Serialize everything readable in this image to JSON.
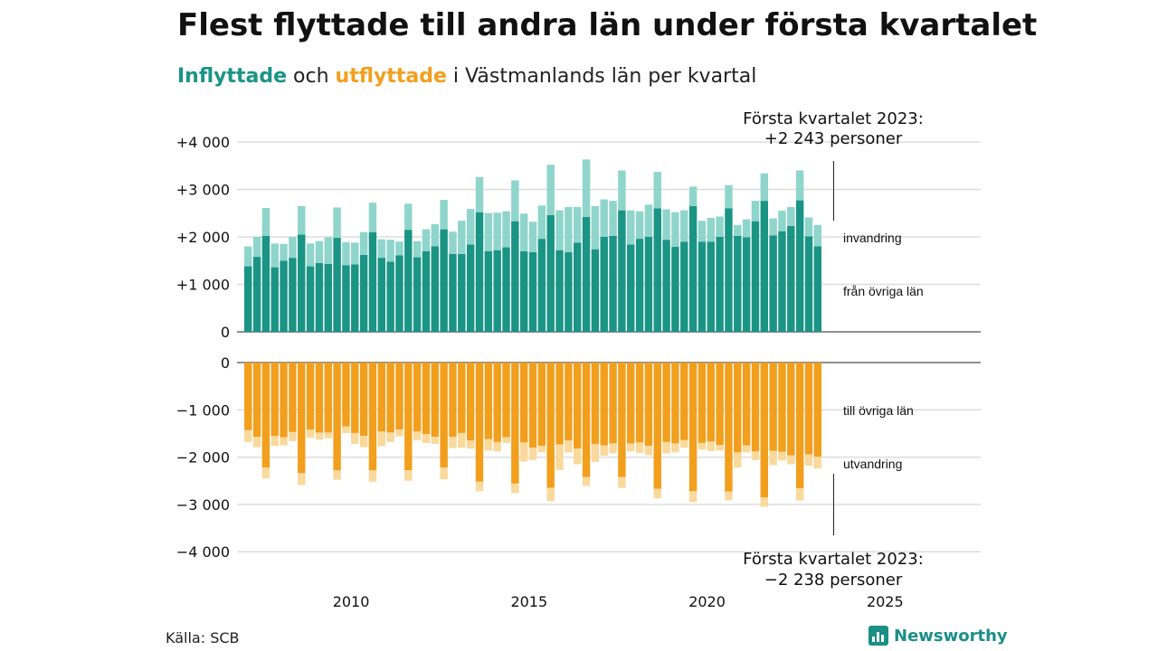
{
  "title": "Flest flyttade till andra län under första kvartalet",
  "subtitle": {
    "inflyttade": "Inflyttade",
    "och": "och",
    "utflyttade": "utflyttade",
    "rest": "i Västmanlands län per kvartal"
  },
  "source": "Källa: SCB",
  "brand": "Newsworthy",
  "colors": {
    "in_dark": "#1a9485",
    "in_light": "#8fd5cb",
    "out_dark": "#f29f1d",
    "out_light": "#f9d99c",
    "grid": "#dddddd"
  },
  "chart_data": {
    "type": "bar",
    "quarters": [
      "2007Q1",
      "2007Q2",
      "2007Q3",
      "2007Q4",
      "2008Q1",
      "2008Q2",
      "2008Q3",
      "2008Q4",
      "2009Q1",
      "2009Q2",
      "2009Q3",
      "2009Q4",
      "2010Q1",
      "2010Q2",
      "2010Q3",
      "2010Q4",
      "2011Q1",
      "2011Q2",
      "2011Q3",
      "2011Q4",
      "2012Q1",
      "2012Q2",
      "2012Q3",
      "2012Q4",
      "2013Q1",
      "2013Q2",
      "2013Q3",
      "2013Q4",
      "2014Q1",
      "2014Q2",
      "2014Q3",
      "2014Q4",
      "2015Q1",
      "2015Q2",
      "2015Q3",
      "2015Q4",
      "2016Q1",
      "2016Q2",
      "2016Q3",
      "2016Q4",
      "2017Q1",
      "2017Q2",
      "2017Q3",
      "2017Q4",
      "2018Q1",
      "2018Q2",
      "2018Q3",
      "2018Q4",
      "2019Q1",
      "2019Q2",
      "2019Q3",
      "2019Q4",
      "2020Q1",
      "2020Q2",
      "2020Q3",
      "2020Q4",
      "2021Q1",
      "2021Q2",
      "2021Q3",
      "2021Q4",
      "2022Q1",
      "2022Q2",
      "2022Q3",
      "2022Q4",
      "2023Q1"
    ],
    "x_ticks": [
      "2010",
      "2015",
      "2020",
      "2025"
    ],
    "top_panel": {
      "y_ticks": [
        "+4 000",
        "+3 000",
        "+2 000",
        "+1 000",
        "0"
      ],
      "ylim": [
        0,
        4000
      ],
      "series": [
        {
          "name": "från övriga län",
          "values": [
            1380,
            1580,
            2020,
            1360,
            1500,
            1560,
            2050,
            1380,
            1450,
            1430,
            1980,
            1400,
            1420,
            1620,
            2100,
            1560,
            1480,
            1610,
            2150,
            1570,
            1700,
            1800,
            2160,
            1640,
            1640,
            1840,
            2520,
            1700,
            1720,
            1780,
            2330,
            1700,
            1680,
            1960,
            2460,
            1720,
            1680,
            1880,
            2420,
            1740,
            2000,
            2020,
            2560,
            1840,
            1960,
            2000,
            2600,
            1940,
            1790,
            1900,
            2650,
            1900,
            1900,
            2000,
            2600,
            2020,
            1990,
            2330,
            2760,
            2030,
            2120,
            2230,
            2770,
            2010,
            1800
          ]
        },
        {
          "name": "invandring",
          "values": [
            420,
            420,
            590,
            500,
            350,
            440,
            600,
            480,
            460,
            560,
            640,
            490,
            460,
            480,
            620,
            390,
            460,
            290,
            550,
            340,
            460,
            470,
            620,
            470,
            700,
            750,
            740,
            800,
            790,
            760,
            860,
            790,
            640,
            700,
            1060,
            840,
            950,
            750,
            1210,
            910,
            790,
            740,
            840,
            720,
            580,
            680,
            770,
            640,
            730,
            660,
            410,
            440,
            500,
            430,
            490,
            230,
            380,
            430,
            580,
            360,
            430,
            400,
            630,
            400,
            450
          ]
        }
      ]
    },
    "bottom_panel": {
      "y_ticks": [
        "0",
        "−1 000",
        "−2 000",
        "−3 000",
        "−4 000"
      ],
      "ylim": [
        -4000,
        0
      ],
      "series": [
        {
          "name": "till övriga län",
          "values": [
            -1430,
            -1570,
            -2220,
            -1550,
            -1580,
            -1470,
            -2340,
            -1420,
            -1480,
            -1480,
            -2280,
            -1350,
            -1490,
            -1550,
            -2280,
            -1460,
            -1480,
            -1420,
            -2280,
            -1460,
            -1510,
            -1570,
            -2220,
            -1570,
            -1490,
            -1650,
            -2520,
            -1620,
            -1680,
            -1580,
            -2560,
            -1690,
            -1800,
            -1760,
            -2650,
            -1730,
            -1650,
            -1820,
            -2420,
            -1720,
            -1750,
            -1710,
            -2420,
            -1710,
            -1690,
            -1760,
            -2670,
            -1680,
            -1710,
            -1640,
            -2720,
            -1700,
            -1670,
            -1740,
            -2730,
            -1900,
            -1750,
            -1880,
            -2850,
            -1870,
            -1890,
            -1960,
            -2660,
            -1940,
            -1990
          ]
        },
        {
          "name": "utvandring",
          "values": [
            -250,
            -220,
            -230,
            -210,
            -170,
            -190,
            -250,
            -170,
            -150,
            -120,
            -200,
            -140,
            -230,
            -240,
            -240,
            -310,
            -200,
            -140,
            -220,
            -180,
            -190,
            -150,
            -250,
            -240,
            -310,
            -170,
            -200,
            -240,
            -200,
            -120,
            -200,
            -400,
            -260,
            -140,
            -280,
            -540,
            -250,
            -330,
            -190,
            -380,
            -220,
            -210,
            -230,
            -170,
            -220,
            -200,
            -200,
            -240,
            -190,
            -160,
            -230,
            -140,
            -200,
            -120,
            -180,
            -320,
            -150,
            -180,
            -200,
            -300,
            -180,
            -190,
            -260,
            -240,
            -250
          ]
        }
      ]
    },
    "annotations": {
      "top": [
        "Första kvartalet 2023:",
        "+2 243 personer"
      ],
      "bottom": [
        "Första kvartalet 2023:",
        "−2 238 personer"
      ]
    }
  }
}
